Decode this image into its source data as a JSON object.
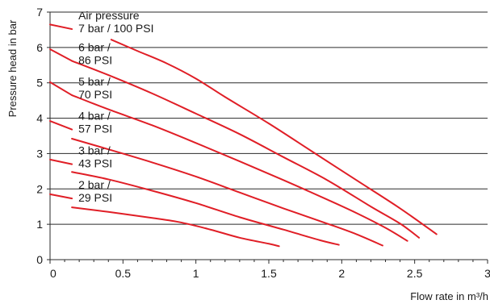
{
  "chart_data": {
    "type": "line",
    "xlabel": "Flow rate in m³/h",
    "ylabel": "Pressure head in bar",
    "xlim": [
      0,
      3
    ],
    "ylim": [
      0,
      7
    ],
    "x_ticks": [
      "0",
      "0.5",
      "1",
      "1.5",
      "2",
      "2.5",
      "3"
    ],
    "y_ticks": [
      "0",
      "1",
      "2",
      "3",
      "4",
      "5",
      "6",
      "7"
    ],
    "grid": "horizontal",
    "line_color": "#e01e26",
    "series": [
      {
        "name_lines": [
          "Air pressure",
          "7 bar / 100 PSI"
        ],
        "label_start": [
          0,
          6.65
        ],
        "label_end": [
          0.15,
          6.52
        ],
        "points": [
          [
            0.42,
            6.22
          ],
          [
            0.6,
            5.9
          ],
          [
            0.8,
            5.55
          ],
          [
            1.0,
            5.12
          ],
          [
            1.2,
            4.6
          ],
          [
            1.5,
            3.85
          ],
          [
            1.8,
            3.05
          ],
          [
            2.1,
            2.25
          ],
          [
            2.4,
            1.45
          ],
          [
            2.65,
            0.72
          ]
        ]
      },
      {
        "name_lines": [
          "6 bar /",
          "86 PSI"
        ],
        "label_start": [
          0,
          5.95
        ],
        "label_end": [
          0.15,
          5.62
        ],
        "points": [
          [
            0.15,
            5.62
          ],
          [
            0.4,
            5.22
          ],
          [
            0.7,
            4.7
          ],
          [
            1.0,
            4.13
          ],
          [
            1.3,
            3.55
          ],
          [
            1.6,
            2.9
          ],
          [
            1.9,
            2.25
          ],
          [
            2.2,
            1.5
          ],
          [
            2.4,
            1.02
          ],
          [
            2.53,
            0.62
          ]
        ]
      },
      {
        "name_lines": [
          "5 bar /",
          "70 PSI"
        ],
        "label_start": [
          0,
          5.02
        ],
        "label_end": [
          0.15,
          4.65
        ],
        "points": [
          [
            0.15,
            4.65
          ],
          [
            0.4,
            4.25
          ],
          [
            0.7,
            3.8
          ],
          [
            1.0,
            3.3
          ],
          [
            1.3,
            2.78
          ],
          [
            1.6,
            2.25
          ],
          [
            1.9,
            1.7
          ],
          [
            2.1,
            1.32
          ],
          [
            2.3,
            0.9
          ],
          [
            2.45,
            0.53
          ]
        ]
      },
      {
        "name_lines": [
          "4 bar /",
          "57 PSI"
        ],
        "label_start": [
          0,
          3.92
        ],
        "label_end": [
          0.15,
          3.68
        ],
        "points": [
          [
            0.15,
            3.42
          ],
          [
            0.4,
            3.12
          ],
          [
            0.7,
            2.75
          ],
          [
            1.0,
            2.35
          ],
          [
            1.3,
            1.9
          ],
          [
            1.6,
            1.45
          ],
          [
            1.9,
            1.02
          ],
          [
            2.1,
            0.72
          ],
          [
            2.28,
            0.4
          ]
        ]
      },
      {
        "name_lines": [
          "3 bar /",
          "43 PSI"
        ],
        "label_start": [
          0,
          2.83
        ],
        "label_end": [
          0.15,
          2.7
        ],
        "points": [
          [
            0.15,
            2.48
          ],
          [
            0.4,
            2.27
          ],
          [
            0.7,
            1.95
          ],
          [
            1.0,
            1.6
          ],
          [
            1.3,
            1.2
          ],
          [
            1.6,
            0.85
          ],
          [
            1.85,
            0.55
          ],
          [
            1.98,
            0.42
          ]
        ]
      },
      {
        "name_lines": [
          "2 bar /",
          "29 PSI"
        ],
        "label_start": [
          0,
          1.85
        ],
        "label_end": [
          0.15,
          1.73
        ],
        "points": [
          [
            0.15,
            1.48
          ],
          [
            0.4,
            1.35
          ],
          [
            0.7,
            1.18
          ],
          [
            0.9,
            1.05
          ],
          [
            1.1,
            0.85
          ],
          [
            1.3,
            0.62
          ],
          [
            1.5,
            0.45
          ],
          [
            1.57,
            0.38
          ]
        ]
      }
    ]
  }
}
